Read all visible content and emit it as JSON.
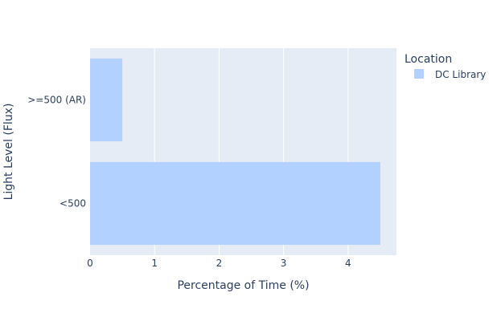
{
  "chart_data": {
    "type": "bar",
    "orientation": "horizontal",
    "categories": [
      ">=500 (AR)",
      "<500"
    ],
    "series": [
      {
        "name": "DC Library",
        "values": [
          0.5,
          4.5
        ]
      }
    ],
    "xlabel": "Percentage of Time (%)",
    "ylabel": "Light Level (Flux)",
    "xlim": [
      0,
      4.75
    ],
    "xticks": [
      0,
      1,
      2,
      3,
      4
    ],
    "grid": true,
    "legend": {
      "title": "Location",
      "placement": "top-right"
    },
    "colors": {
      "plot_background": "#e5ecf6",
      "bar": "#b3d1ff",
      "grid": "#ffffff",
      "text": "#2a3f5f"
    }
  }
}
